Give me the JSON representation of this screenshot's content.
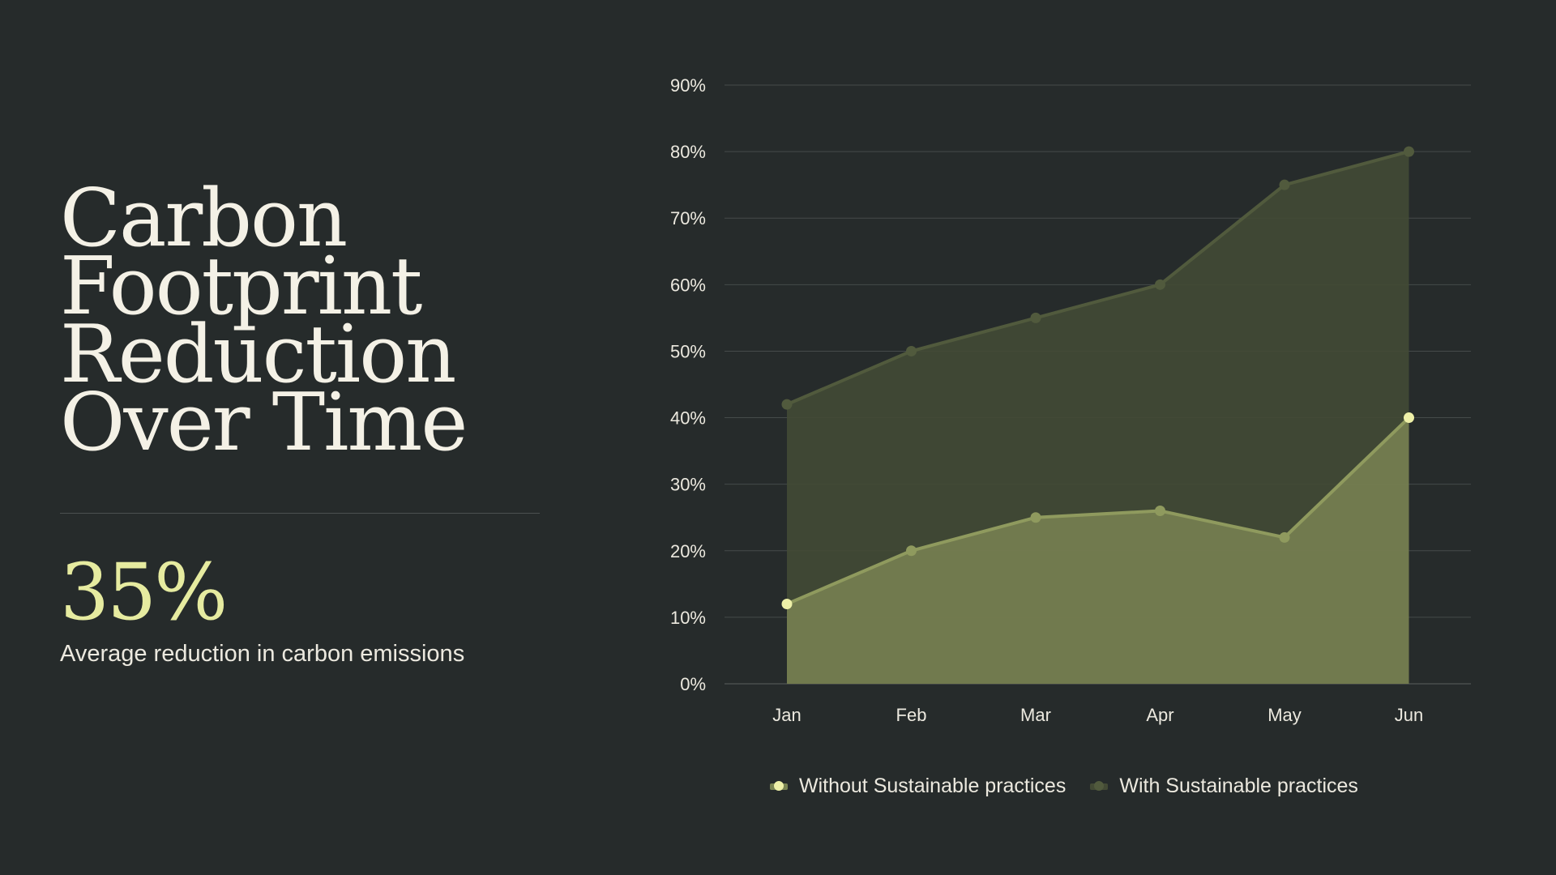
{
  "heading": {
    "lines": [
      "Carbon",
      "Footprint",
      "Reduction",
      "Over Time"
    ]
  },
  "stat": {
    "value": "35%",
    "label": "Average reduction in carbon emissions"
  },
  "colors": {
    "background": "#262b2b",
    "without": "#7a8453",
    "without_marker": "#eef0a8",
    "with": "#434a35",
    "with_line": "#515a3d",
    "accent": "#e6eba0"
  },
  "chart_data": {
    "type": "area",
    "categories": [
      "Jan",
      "Feb",
      "Mar",
      "Apr",
      "May",
      "Jun"
    ],
    "series": [
      {
        "name": "Without Sustainable practices",
        "values": [
          12,
          20,
          25,
          26,
          22,
          40
        ]
      },
      {
        "name": "With Sustainable practices",
        "values": [
          42,
          50,
          55,
          60,
          75,
          80
        ]
      }
    ],
    "ylim": [
      0,
      90
    ],
    "yticks": [
      "0%",
      "10%",
      "20%",
      "30%",
      "40%",
      "50%",
      "60%",
      "70%",
      "80%",
      "90%"
    ],
    "grid": true,
    "legend": "bottom"
  }
}
